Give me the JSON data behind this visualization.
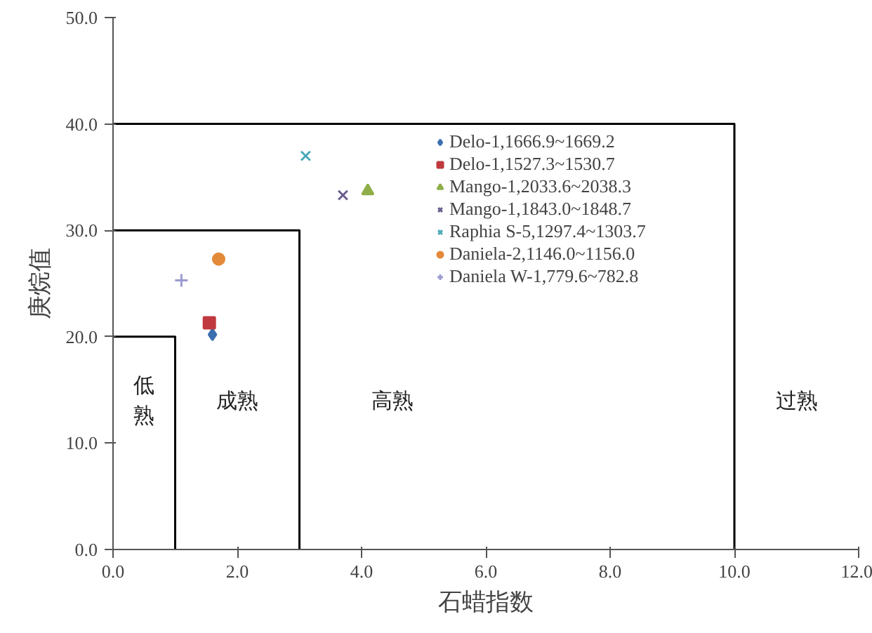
{
  "chart_data": {
    "type": "scatter",
    "xlabel": "石蜡指数",
    "ylabel": "庚烷值",
    "xlim": [
      0,
      12
    ],
    "ylim": [
      0,
      50
    ],
    "xticks": [
      {
        "value": 0,
        "label": "0.0"
      },
      {
        "value": 2,
        "label": "2.0"
      },
      {
        "value": 4,
        "label": "4.0"
      },
      {
        "value": 6,
        "label": "6.0"
      },
      {
        "value": 8,
        "label": "8.0"
      },
      {
        "value": 10,
        "label": "10.0"
      },
      {
        "value": 12,
        "label": "12.0"
      }
    ],
    "yticks": [
      {
        "value": 0,
        "label": "0.0"
      },
      {
        "value": 10,
        "label": "10.0"
      },
      {
        "value": 20,
        "label": "20.0"
      },
      {
        "value": 30,
        "label": "30.0"
      },
      {
        "value": 40,
        "label": "40.0"
      },
      {
        "value": 50,
        "label": "50.0"
      }
    ],
    "grid": false,
    "legend": "top right",
    "series": [
      {
        "name": "Delo-1,1666.9~1669.2",
        "color": "#3a6fb0",
        "marker": "diamond",
        "x": [
          1.6
        ],
        "values": [
          20.2
        ]
      },
      {
        "name": "Delo-1,1527.3~1530.7",
        "color": "#c0393f",
        "marker": "square",
        "x": [
          1.55
        ],
        "values": [
          21.3
        ]
      },
      {
        "name": "Mango-1,2033.6~2038.3",
        "color": "#8fae4a",
        "marker": "triangle",
        "x": [
          4.1
        ],
        "values": [
          33.7
        ]
      },
      {
        "name": "Mango-1,1843.0~1848.7",
        "color": "#6a5c8e",
        "marker": "x",
        "x": [
          3.7
        ],
        "values": [
          33.3
        ]
      },
      {
        "name": "Raphia S-5,1297.4~1303.7",
        "color": "#4aa8b8",
        "marker": "x",
        "x": [
          3.1
        ],
        "values": [
          37.0
        ]
      },
      {
        "name": "Daniela-2,1146.0~1156.0",
        "color": "#e38a3a",
        "marker": "circle",
        "x": [
          1.7
        ],
        "values": [
          27.3
        ]
      },
      {
        "name": "Daniela W-1,779.6~782.8",
        "color": "#9a9ad0",
        "marker": "cross",
        "x": [
          1.1
        ],
        "values": [
          25.3
        ]
      },
      {
        "type": "line",
        "color": "#000000",
        "x": [
          0,
          1,
          1
        ],
        "values": [
          20,
          20,
          0
        ]
      },
      {
        "type": "line",
        "color": "#000000",
        "x": [
          0,
          3,
          3
        ],
        "values": [
          30,
          30,
          0
        ]
      },
      {
        "type": "line",
        "color": "#000000",
        "x": [
          0,
          10,
          10
        ],
        "values": [
          40,
          40,
          0
        ]
      }
    ],
    "annotations": [
      "低熟",
      "成熟",
      "高熟",
      "过熟"
    ]
  }
}
